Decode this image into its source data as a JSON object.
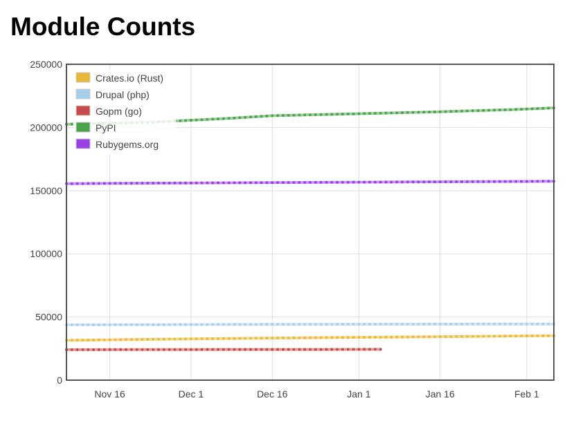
{
  "page": {
    "title": "Module Counts"
  },
  "chart_data": {
    "type": "line",
    "title": "",
    "xlabel": "",
    "ylabel": "",
    "x_axis": {
      "type": "date",
      "range": [
        "2015-11-08",
        "2016-02-06"
      ],
      "ticks": [
        {
          "label": "Nov 16",
          "date": "2015-11-16"
        },
        {
          "label": "Dec 1",
          "date": "2015-12-01"
        },
        {
          "label": "Dec 16",
          "date": "2015-12-16"
        },
        {
          "label": "Jan 1",
          "date": "2016-01-01"
        },
        {
          "label": "Jan 16",
          "date": "2016-01-16"
        },
        {
          "label": "Feb 1",
          "date": "2016-02-01"
        }
      ]
    },
    "y_axis": {
      "range": [
        0,
        250000
      ],
      "ticks": [
        0,
        50000,
        100000,
        150000,
        200000,
        250000
      ]
    },
    "grid": true,
    "legend_placement": "top-left",
    "series": [
      {
        "name": "Crates.io (Rust)",
        "color": "#e8b93a",
        "points": [
          [
            "2015-11-08",
            31500
          ],
          [
            "2015-11-23",
            32300
          ],
          [
            "2015-12-08",
            33000
          ],
          [
            "2015-12-23",
            33600
          ],
          [
            "2016-01-07",
            34100
          ],
          [
            "2016-01-22",
            34600
          ],
          [
            "2016-02-06",
            35200
          ]
        ]
      },
      {
        "name": "Drupal (php)",
        "color": "#a8cfee",
        "points": [
          [
            "2015-11-08",
            43800
          ],
          [
            "2015-11-23",
            43900
          ],
          [
            "2015-12-08",
            44100
          ],
          [
            "2015-12-23",
            44200
          ],
          [
            "2016-01-07",
            44300
          ],
          [
            "2016-01-22",
            44400
          ],
          [
            "2016-02-06",
            44500
          ]
        ]
      },
      {
        "name": "Gopm (go)",
        "color": "#c94a4a",
        "points": [
          [
            "2015-11-08",
            24100
          ],
          [
            "2015-11-23",
            24200
          ],
          [
            "2015-12-08",
            24300
          ],
          [
            "2015-12-23",
            24300
          ],
          [
            "2016-01-05",
            24400
          ]
        ]
      },
      {
        "name": "PyPI",
        "color": "#4ca34c",
        "points": [
          [
            "2015-11-08",
            202500
          ],
          [
            "2015-11-23",
            204000
          ],
          [
            "2015-12-08",
            207200
          ],
          [
            "2015-12-16",
            209300
          ],
          [
            "2015-12-31",
            210800
          ],
          [
            "2016-01-15",
            212300
          ],
          [
            "2016-01-30",
            214200
          ],
          [
            "2016-02-06",
            215500
          ]
        ]
      },
      {
        "name": "Rubygems.org",
        "color": "#9a3fe8",
        "points": [
          [
            "2015-11-08",
            155500
          ],
          [
            "2015-11-23",
            155900
          ],
          [
            "2015-12-08",
            156200
          ],
          [
            "2015-12-23",
            156500
          ],
          [
            "2016-01-07",
            156800
          ],
          [
            "2016-01-22",
            157100
          ],
          [
            "2016-02-06",
            157400
          ]
        ]
      }
    ]
  }
}
